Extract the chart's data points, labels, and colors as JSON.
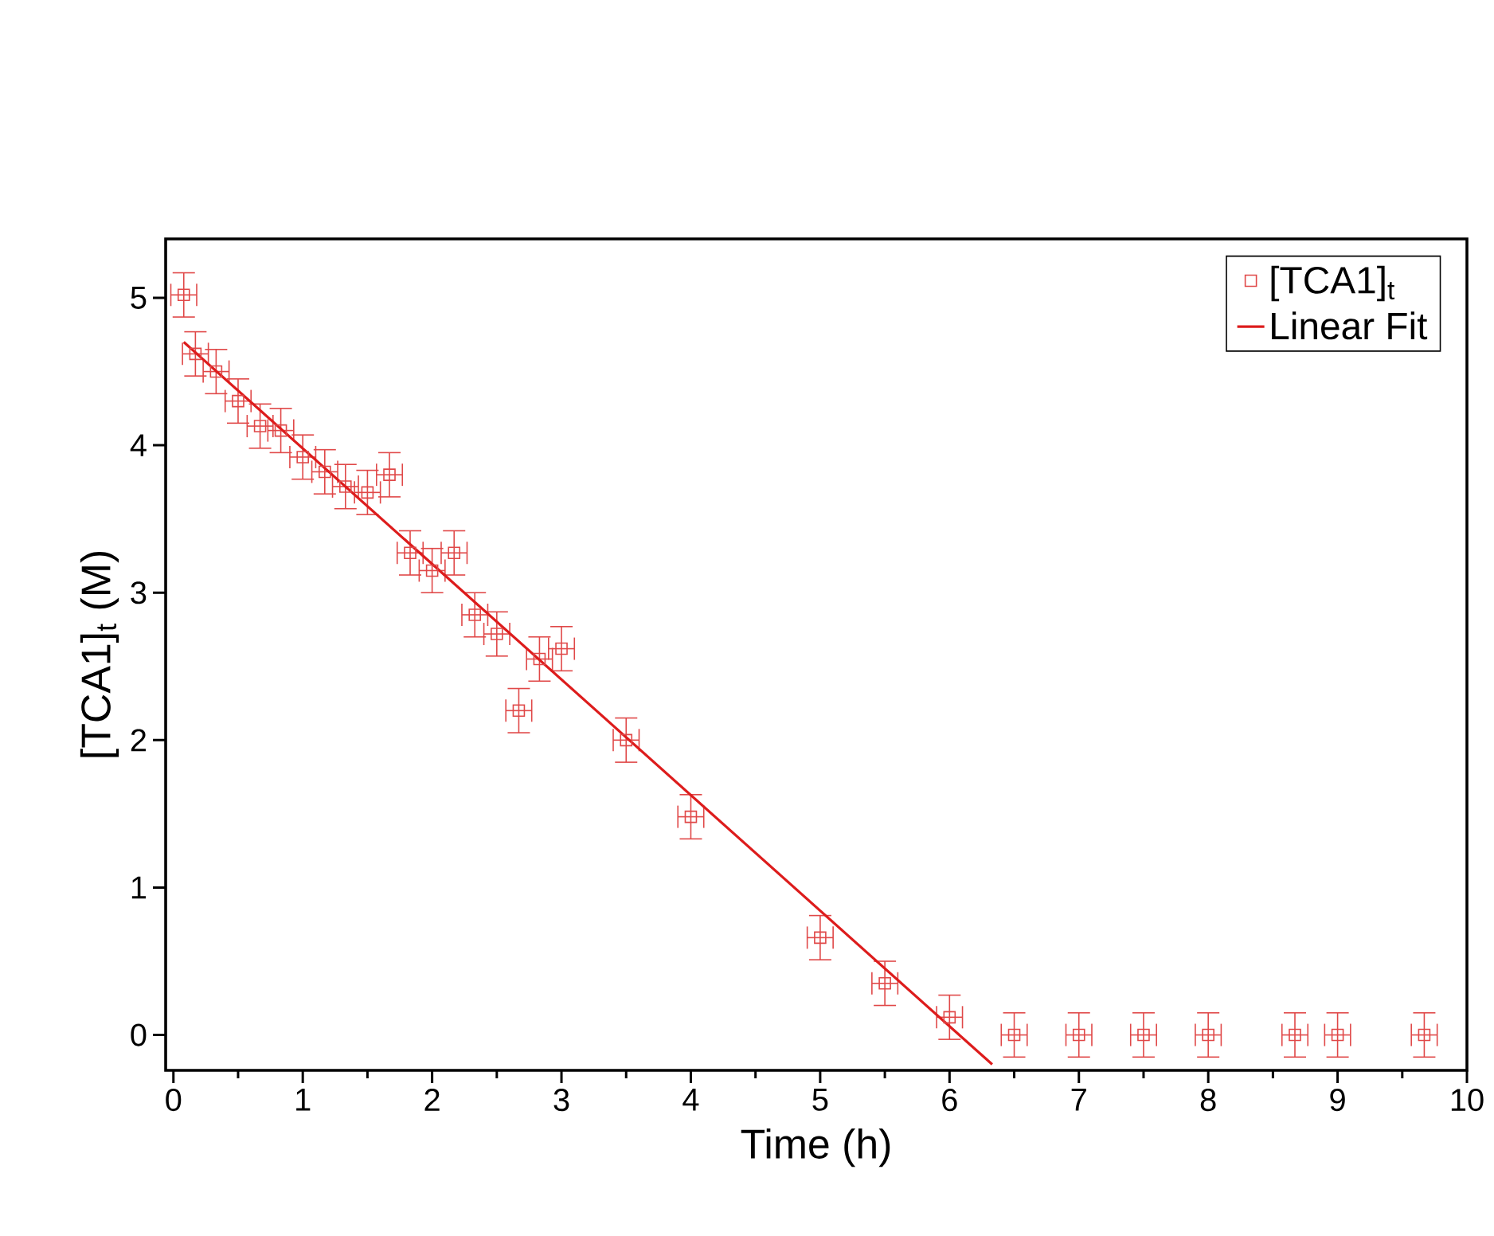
{
  "chart_data": {
    "type": "scatter",
    "xlabel": "Time (h)",
    "ylabel": "[TCA1]$_{t}$ (M)",
    "xlim": [
      -0.06,
      10
    ],
    "ylim": [
      -0.24,
      5.4
    ],
    "xticks": [
      0,
      1,
      2,
      3,
      4,
      5,
      6,
      7,
      8,
      9,
      10
    ],
    "yticks": [
      0,
      1,
      2,
      3,
      4,
      5
    ],
    "legend": "top right",
    "grid": false,
    "series": [
      {
        "name": "[TCA1]$_{t}$",
        "marker": "square",
        "color": "#e04848",
        "x": [
          0.08,
          0.17,
          0.33,
          0.5,
          0.67,
          0.83,
          1.0,
          1.17,
          1.33,
          1.5,
          1.67,
          1.83,
          2.0,
          2.17,
          2.33,
          2.5,
          2.67,
          2.83,
          3.0,
          3.5,
          4.0,
          5.0,
          5.5,
          6.0,
          6.5,
          7.0,
          7.5,
          8.0,
          8.67,
          9.0,
          9.67
        ],
        "values": [
          5.02,
          4.62,
          4.5,
          4.3,
          4.13,
          4.1,
          3.92,
          3.82,
          3.72,
          3.68,
          3.8,
          3.27,
          3.15,
          3.27,
          2.85,
          2.72,
          2.2,
          2.55,
          2.62,
          2.0,
          1.48,
          0.66,
          0.35,
          0.12,
          0,
          0,
          0,
          0,
          0,
          0,
          0
        ],
        "errors": [
          0.15,
          0.15,
          0.15,
          0.15,
          0.15,
          0.15,
          0.15,
          0.15,
          0.15,
          0.15,
          0.15,
          0.15,
          0.15,
          0.15,
          0.15,
          0.15,
          0.15,
          0.15,
          0.15,
          0.15,
          0.15,
          0.15,
          0.15,
          0.15,
          0.15,
          0.15,
          0.15,
          0.15,
          0.15,
          0.15,
          0.15
        ],
        "xerrors": [
          0.1,
          0.1,
          0.1,
          0.1,
          0.1,
          0.1,
          0.1,
          0.1,
          0.1,
          0.1,
          0.1,
          0.1,
          0.1,
          0.1,
          0.1,
          0.1,
          0.1,
          0.1,
          0.1,
          0.1,
          0.1,
          0.1,
          0.1,
          0.1,
          0.1,
          0.1,
          0.1,
          0.1,
          0.1,
          0.1,
          0.1
        ]
      },
      {
        "name": "Linear Fit",
        "type": "line",
        "marker": "none",
        "line_style": "solid",
        "color": "#dd1c1c",
        "x": [
          0.08,
          6.33
        ],
        "values": [
          4.7,
          -0.2
        ]
      }
    ]
  }
}
